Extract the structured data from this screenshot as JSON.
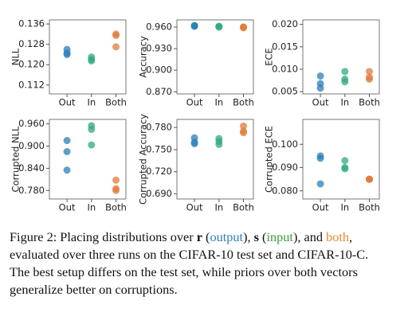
{
  "chart_data": [
    {
      "type": "scatter",
      "ylabel": "NLL",
      "categories": [
        "Out",
        "In",
        "Both"
      ],
      "values": [
        [
          0.126,
          0.124,
          0.1245
        ],
        [
          0.123,
          0.122,
          0.1215
        ],
        [
          0.132,
          0.1315,
          0.127
        ]
      ],
      "colors": [
        "#2a7fb8",
        "#33aa80",
        "#e07b39"
      ],
      "ylim": [
        0.1085,
        0.1376
      ],
      "yticks": [
        {
          "value": 0.112,
          "label": "0.112"
        },
        {
          "value": 0.12,
          "label": "0.120"
        },
        {
          "value": 0.128,
          "label": "0.128"
        },
        {
          "value": 0.136,
          "label": "0.136"
        }
      ]
    },
    {
      "type": "scatter",
      "ylabel": "Accuracy",
      "categories": [
        "Out",
        "In",
        "Both"
      ],
      "values": [
        [
          0.962,
          0.962,
          0.961
        ],
        [
          0.961,
          0.961,
          0.96
        ],
        [
          0.96,
          0.959,
          0.96
        ]
      ],
      "colors": [
        "#2a7fb8",
        "#33aa80",
        "#e07b39"
      ],
      "ylim": [
        0.867,
        0.97
      ],
      "yticks": [
        {
          "value": 0.87,
          "label": "0.870"
        },
        {
          "value": 0.9,
          "label": "0.900"
        },
        {
          "value": 0.93,
          "label": "0.930"
        },
        {
          "value": 0.96,
          "label": "0.960"
        }
      ]
    },
    {
      "type": "scatter",
      "ylabel": "ECE",
      "categories": [
        "Out",
        "In",
        "Both"
      ],
      "values": [
        [
          0.0085,
          0.0068,
          0.0058
        ],
        [
          0.0095,
          0.0078,
          0.0072
        ],
        [
          0.0095,
          0.0082,
          0.0078
        ]
      ],
      "colors": [
        "#2a7fb8",
        "#33aa80",
        "#e07b39"
      ],
      "ylim": [
        0.0045,
        0.021
      ],
      "yticks": [
        {
          "value": 0.005,
          "label": "0.005"
        },
        {
          "value": 0.01,
          "label": "0.010"
        },
        {
          "value": 0.015,
          "label": "0.015"
        },
        {
          "value": 0.02,
          "label": "0.020"
        }
      ]
    },
    {
      "type": "scatter",
      "ylabel": "Corrupted NLL",
      "categories": [
        "Out",
        "In",
        "Both"
      ],
      "values": [
        [
          0.915,
          0.885,
          0.835
        ],
        [
          0.955,
          0.945,
          0.903
        ],
        [
          0.808,
          0.785,
          0.78
        ]
      ],
      "colors": [
        "#2a7fb8",
        "#33aa80",
        "#e07b39"
      ],
      "ylim": [
        0.757,
        0.972
      ],
      "yticks": [
        {
          "value": 0.78,
          "label": "0.780"
        },
        {
          "value": 0.84,
          "label": "0.840"
        },
        {
          "value": 0.9,
          "label": "0.900"
        },
        {
          "value": 0.96,
          "label": "0.960"
        }
      ]
    },
    {
      "type": "scatter",
      "ylabel": "Corrupted Accuracy",
      "categories": [
        "Out",
        "In",
        "Both"
      ],
      "values": [
        [
          0.766,
          0.76,
          0.758
        ],
        [
          0.765,
          0.761,
          0.757
        ],
        [
          0.782,
          0.775,
          0.773
        ]
      ],
      "colors": [
        "#2a7fb8",
        "#33aa80",
        "#e07b39"
      ],
      "ylim": [
        0.683,
        0.791
      ],
      "yticks": [
        {
          "value": 0.69,
          "label": "0.690"
        },
        {
          "value": 0.72,
          "label": "0.720"
        },
        {
          "value": 0.75,
          "label": "0.750"
        },
        {
          "value": 0.78,
          "label": "0.780"
        }
      ]
    },
    {
      "type": "scatter",
      "ylabel": "Corrupted ECE",
      "categories": [
        "Out",
        "In",
        "Both"
      ],
      "values": [
        [
          0.095,
          0.094,
          0.083
        ],
        [
          0.093,
          0.09,
          0.0895
        ],
        [
          0.085,
          0.085,
          0.085
        ]
      ],
      "colors": [
        "#2a7fb8",
        "#33aa80",
        "#e07b39"
      ],
      "ylim": [
        0.0765,
        0.1107
      ],
      "yticks": [
        {
          "value": 0.08,
          "label": "0.080"
        },
        {
          "value": 0.09,
          "label": "0.090"
        },
        {
          "value": 0.1,
          "label": "0.100"
        }
      ]
    }
  ],
  "caption": [
    {
      "text": "Figure 2: Placing distributions over "
    },
    {
      "text": "r",
      "bold": true
    },
    {
      "text": " ("
    },
    {
      "text": "output",
      "color": "#2a7fb8"
    },
    {
      "text": "), "
    },
    {
      "text": "s",
      "bold": true
    },
    {
      "text": " ("
    },
    {
      "text": "input",
      "color": "#3a9a3a"
    },
    {
      "text": "), and "
    },
    {
      "text": "both",
      "color": "#e08a30"
    },
    {
      "text": ", evaluated over three runs on the CIFAR-10 test set and CIFAR-10-C. The best setup differs on the test set, while priors over both vectors generalize better on corruptions."
    }
  ]
}
